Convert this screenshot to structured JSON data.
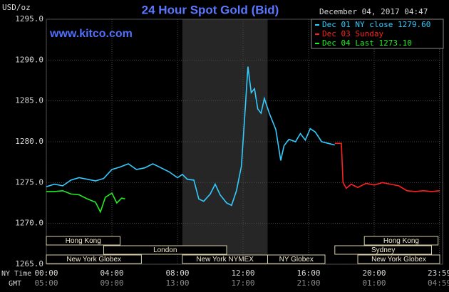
{
  "chart_data": {
    "type": "line",
    "title": "24 Hour Spot Gold (Bid)",
    "subtitle": "December 04, 2017 04:47",
    "source": "www.kitco.com",
    "y_label": "USD/oz",
    "x_label": "NY Time",
    "x2_label": "GMT",
    "xlim": [
      0,
      24
    ],
    "ylim": [
      1265,
      1295
    ],
    "grid": true,
    "yticks": [
      {
        "value": 1265,
        "label": "1265.0"
      },
      {
        "value": 1270,
        "label": "1270.0"
      },
      {
        "value": 1275,
        "label": "1275.0"
      },
      {
        "value": 1280,
        "label": "1280.0"
      },
      {
        "value": 1285,
        "label": "1285.0"
      },
      {
        "value": 1290,
        "label": "1290.0"
      },
      {
        "value": 1295,
        "label": "1295.0"
      }
    ],
    "xticks": [
      {
        "value": 0,
        "label": "00:00"
      },
      {
        "value": 4,
        "label": "04:00"
      },
      {
        "value": 8,
        "label": "08:00"
      },
      {
        "value": 12,
        "label": "12:00"
      },
      {
        "value": 16,
        "label": "16:00"
      },
      {
        "value": 20,
        "label": "20:00"
      },
      {
        "value": 23.983,
        "label": "23:59"
      }
    ],
    "x2ticks": [
      {
        "value": 0,
        "label": "05:00"
      },
      {
        "value": 4,
        "label": "09:00"
      },
      {
        "value": 8,
        "label": "13:00"
      },
      {
        "value": 12,
        "label": "17:00"
      },
      {
        "value": 16,
        "label": "21:00"
      },
      {
        "value": 20,
        "label": "01:00"
      },
      {
        "value": 23.983,
        "label": "04:59"
      }
    ],
    "highlight": [
      8.3,
      13.5
    ],
    "sessions": [
      {
        "label": "Hong Kong",
        "start": 0,
        "end": 4.5,
        "row": 0
      },
      {
        "label": "Hong Kong",
        "start": 19.4,
        "end": 23.9,
        "row": 0
      },
      {
        "label": "London",
        "start": 3.5,
        "end": 11.0,
        "row": 1
      },
      {
        "label": "Sydney",
        "start": 17.6,
        "end": 23.5,
        "row": 1
      },
      {
        "label": "New York Globex",
        "start": 0,
        "end": 5.8,
        "row": 2
      },
      {
        "label": "New York NYMEX",
        "start": 8.3,
        "end": 13.5,
        "row": 2
      },
      {
        "label": "NY Globex",
        "start": 13.5,
        "end": 17.0,
        "row": 2
      },
      {
        "label": "New York Globex",
        "start": 19.0,
        "end": 24,
        "row": 2
      }
    ],
    "series": [
      {
        "name": "Dec 01 NY close 1279.60",
        "color": "#33ccff",
        "x": [
          0,
          0.5,
          1,
          1.5,
          2,
          2.5,
          3,
          3.5,
          4,
          4.5,
          5,
          5.5,
          6,
          6.5,
          7,
          7.5,
          8,
          8.3,
          8.6,
          9,
          9.3,
          9.6,
          10,
          10.3,
          10.6,
          11,
          11.3,
          11.6,
          11.9,
          12.1,
          12.3,
          12.5,
          12.7,
          12.9,
          13.1,
          13.3,
          13.6,
          14,
          14.3,
          14.5,
          14.8,
          15.2,
          15.5,
          15.8,
          16.1,
          16.4,
          16.8,
          17.2,
          17.6
        ],
        "values": [
          1274.5,
          1274.8,
          1274.6,
          1275.3,
          1275.6,
          1275.4,
          1275.2,
          1275.5,
          1276.6,
          1276.9,
          1277.3,
          1276.6,
          1276.8,
          1277.3,
          1276.8,
          1276.3,
          1275.6,
          1276.0,
          1275.4,
          1275.3,
          1273.0,
          1272.7,
          1273.6,
          1274.8,
          1273.5,
          1272.5,
          1272.2,
          1274.0,
          1277.0,
          1283.0,
          1289.2,
          1286.0,
          1286.5,
          1284.0,
          1283.5,
          1285.3,
          1283.5,
          1281.5,
          1277.7,
          1279.5,
          1280.3,
          1280.0,
          1281.0,
          1280.2,
          1281.6,
          1281.2,
          1280.0,
          1279.8,
          1279.6
        ]
      },
      {
        "name": "Dec 03 Sunday",
        "color": "#ff2020",
        "x": [
          17.6,
          18.0,
          18.1,
          18.3,
          18.6,
          19,
          19.5,
          20,
          20.5,
          21,
          21.5,
          22,
          22.5,
          23,
          23.5,
          24
        ],
        "values": [
          1279.8,
          1279.8,
          1275.0,
          1274.3,
          1274.8,
          1274.4,
          1274.9,
          1274.7,
          1275.0,
          1274.8,
          1274.6,
          1274.0,
          1273.9,
          1274.0,
          1273.9,
          1274.0
        ]
      },
      {
        "name": "Dec 04 Last 1273.10",
        "color": "#22ee22",
        "x": [
          0,
          0.5,
          1,
          1.5,
          2,
          2.5,
          3,
          3.3,
          3.6,
          4,
          4.3,
          4.6,
          4.8
        ],
        "values": [
          1273.9,
          1273.9,
          1274.0,
          1273.6,
          1273.5,
          1273.0,
          1272.6,
          1271.4,
          1273.2,
          1273.7,
          1272.5,
          1273.1,
          1273.0
        ]
      }
    ]
  }
}
